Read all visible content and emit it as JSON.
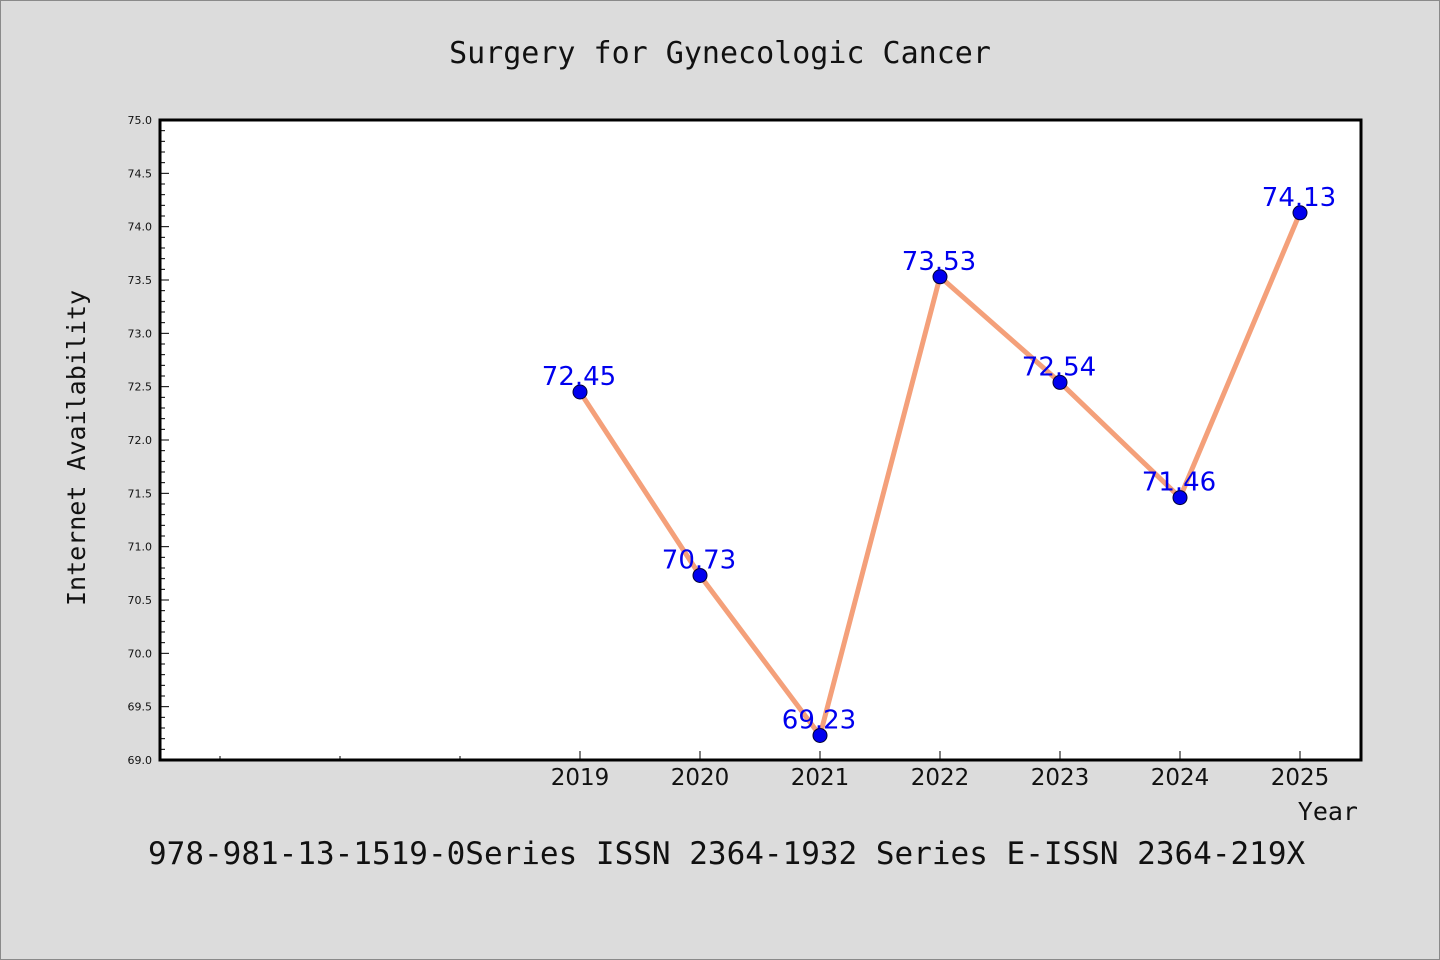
{
  "chart_data": {
    "type": "line",
    "title": "Surgery for Gynecologic Cancer",
    "xlabel": "Year",
    "ylabel": "Internet Availability",
    "categories": [
      "2019",
      "2020",
      "2021",
      "2022",
      "2023",
      "2024",
      "2025"
    ],
    "values": [
      72.45,
      70.73,
      69.23,
      73.53,
      72.54,
      71.46,
      74.13
    ],
    "data_labels": [
      "72.45",
      "70.73",
      "69.23",
      "73.53",
      "72.54",
      "71.46",
      "74.13"
    ],
    "ylim": [
      69.0,
      75.0
    ],
    "yticks": [
      "69.0",
      "69.5",
      "70.0",
      "70.5",
      "71.0",
      "71.5",
      "72.0",
      "72.5",
      "73.0",
      "73.5",
      "74.0",
      "74.5",
      "75.0"
    ],
    "grid": false,
    "line_color": "#f4a07a",
    "marker_color": "#0000ee",
    "label_color": "#0000ee"
  },
  "footer": "978-981-13-1519-0Series ISSN 2364-1932 Series E-ISSN 2364-219X"
}
